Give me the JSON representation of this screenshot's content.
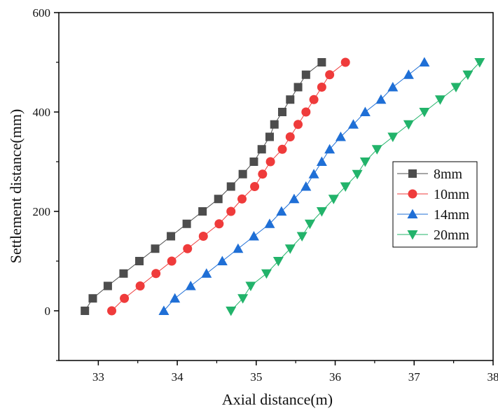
{
  "chart_data": {
    "type": "scatter",
    "xlabel": "Axial distance(m)",
    "ylabel": "Settlement distance(mm)",
    "xlim": [
      32.5,
      38
    ],
    "ylim": [
      -100,
      600
    ],
    "x_ticks": [
      33,
      34,
      35,
      36,
      37,
      38
    ],
    "y_ticks": [
      0,
      200,
      400,
      600
    ],
    "grid": false,
    "legend_position": "right",
    "series": [
      {
        "name": "8mm",
        "color": "#4d4d4d",
        "marker": "square",
        "x": [
          32.83,
          32.93,
          33.12,
          33.32,
          33.52,
          33.72,
          33.92,
          34.12,
          34.32,
          34.52,
          34.68,
          34.83,
          34.97,
          35.07,
          35.17,
          35.23,
          35.33,
          35.43,
          35.53,
          35.63,
          35.83
        ],
        "y": [
          0,
          25,
          50,
          75,
          100,
          125,
          150,
          175,
          200,
          225,
          250,
          275,
          300,
          325,
          350,
          375,
          400,
          425,
          450,
          475,
          500
        ]
      },
      {
        "name": "10mm",
        "color": "#ef3b3b",
        "marker": "circle",
        "x": [
          33.17,
          33.33,
          33.53,
          33.73,
          33.93,
          34.13,
          34.33,
          34.53,
          34.68,
          34.82,
          34.98,
          35.08,
          35.18,
          35.33,
          35.43,
          35.53,
          35.63,
          35.73,
          35.83,
          35.93,
          36.13
        ],
        "y": [
          0,
          25,
          50,
          75,
          100,
          125,
          150,
          175,
          200,
          225,
          250,
          275,
          300,
          325,
          350,
          375,
          400,
          425,
          450,
          475,
          500
        ]
      },
      {
        "name": "14mm",
        "color": "#1f6fd6",
        "marker": "triangle-up",
        "x": [
          33.83,
          33.97,
          34.17,
          34.37,
          34.57,
          34.77,
          34.97,
          35.17,
          35.32,
          35.48,
          35.63,
          35.73,
          35.83,
          35.93,
          36.07,
          36.23,
          36.38,
          36.58,
          36.73,
          36.93,
          37.13
        ],
        "y": [
          0,
          25,
          50,
          75,
          100,
          125,
          150,
          175,
          200,
          225,
          250,
          275,
          300,
          325,
          350,
          375,
          400,
          425,
          450,
          475,
          500
        ]
      },
      {
        "name": "20mm",
        "color": "#22b36a",
        "marker": "triangle-down",
        "x": [
          34.68,
          34.83,
          34.93,
          35.13,
          35.28,
          35.43,
          35.58,
          35.68,
          35.83,
          35.98,
          36.13,
          36.28,
          36.38,
          36.53,
          36.73,
          36.93,
          37.13,
          37.33,
          37.53,
          37.68,
          37.83
        ],
        "y": [
          0,
          25,
          50,
          75,
          100,
          125,
          150,
          175,
          200,
          225,
          250,
          275,
          300,
          325,
          350,
          375,
          400,
          425,
          450,
          475,
          500
        ]
      }
    ]
  }
}
